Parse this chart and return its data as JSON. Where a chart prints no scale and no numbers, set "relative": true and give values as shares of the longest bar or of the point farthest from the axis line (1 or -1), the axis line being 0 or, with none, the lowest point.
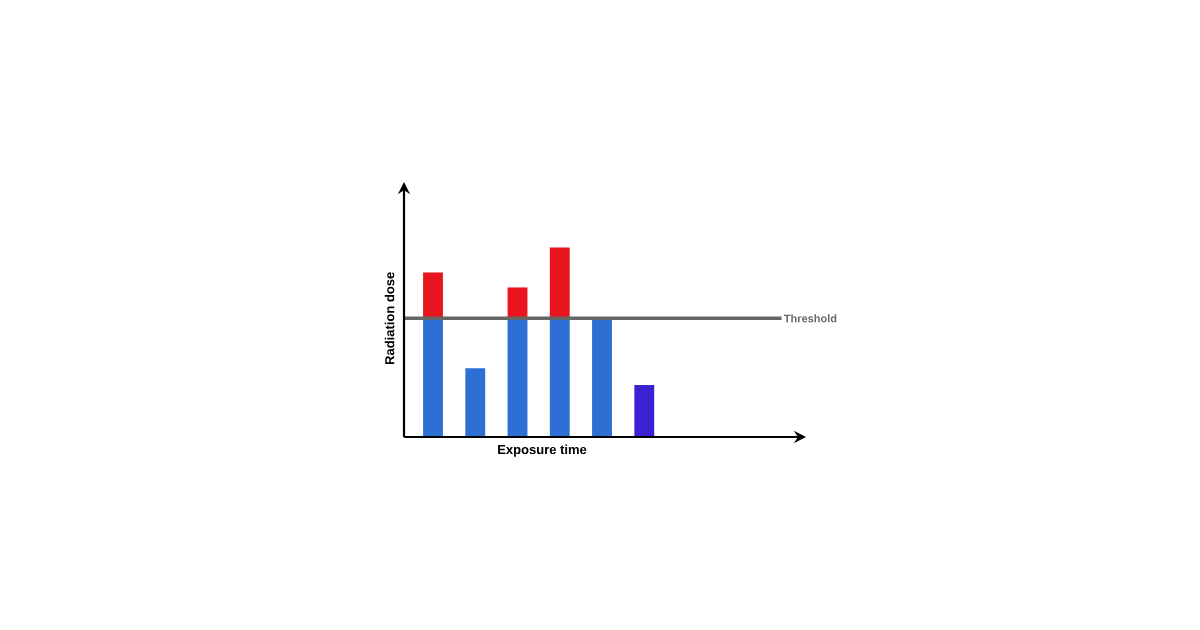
{
  "chart_data": {
    "type": "bar",
    "stacked": true,
    "relative": true,
    "xlabel": "Exposure time",
    "ylabel": "Radiation dose",
    "categories": [
      null,
      null,
      null,
      null,
      null,
      null
    ],
    "series": [
      {
        "colors": [
          "#2d6fd2",
          "#2d6fd2",
          "#2d6fd2",
          "#2d6fd2",
          "#2d6fd2",
          "#3b22d0"
        ],
        "values": [
          0.626,
          0.363,
          0.626,
          0.626,
          0.626,
          0.274
        ]
      },
      {
        "colors": [
          "#e8141e",
          "#e8141e",
          "#e8141e",
          "#e8141e",
          "#e8141e",
          "#e8141e"
        ],
        "values": [
          0.242,
          null,
          0.163,
          0.374,
          null,
          null
        ]
      }
    ],
    "ref_lines": [
      {
        "axis": "y",
        "value": 0.626,
        "label": "Threshold",
        "color": "#666666"
      }
    ]
  }
}
